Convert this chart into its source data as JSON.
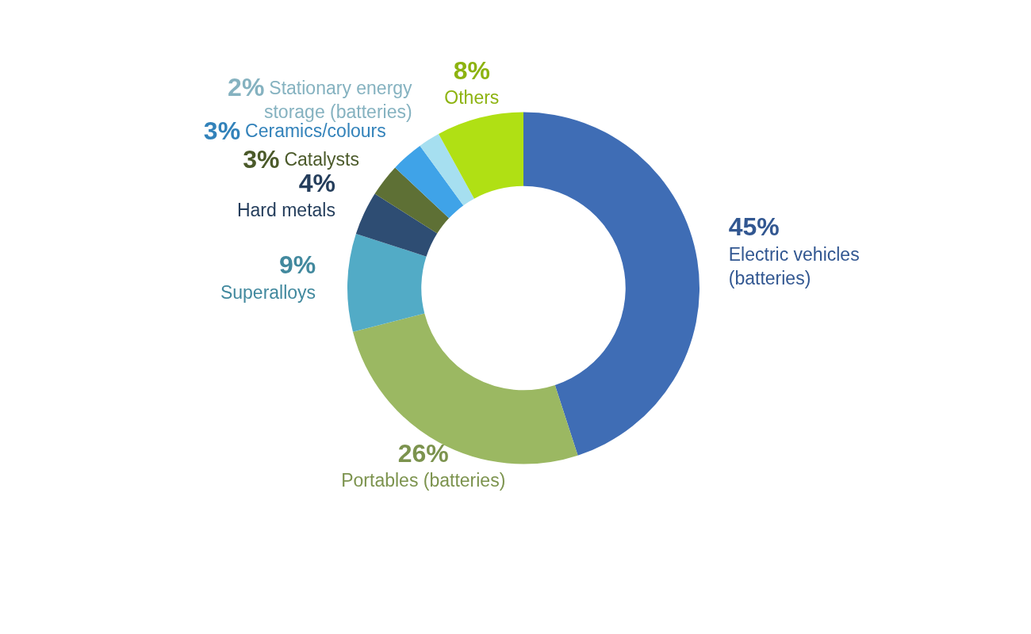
{
  "chart_data": {
    "type": "donut",
    "categories": [
      "Electric vehicles (batteries)",
      "Portables (batteries)",
      "Superalloys",
      "Hard metals",
      "Catalysts",
      "Ceramics/colours",
      "Stationary energy storage (batteries)",
      "Others"
    ],
    "values": [
      45,
      26,
      9,
      4,
      3,
      3,
      2,
      8
    ],
    "value_labels": [
      "45%",
      "26%",
      "9%",
      "4%",
      "3%",
      "3%",
      "2%",
      "8%"
    ],
    "colors": [
      "#3f6db5",
      "#9bb862",
      "#52abc6",
      "#2e4d73",
      "#5e7035",
      "#3fa3e8",
      "#a6dff0",
      "#b0e014"
    ],
    "legend": false
  }
}
